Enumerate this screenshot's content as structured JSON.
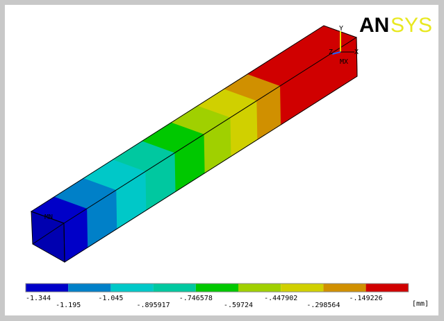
{
  "logo": {
    "part1": "AN",
    "part2": "SYS"
  },
  "triad": {
    "y": "Y",
    "z": "Z",
    "x": "X"
  },
  "markers": {
    "max": "MX",
    "min": "MN"
  },
  "legend": {
    "labels": [
      "-1.344",
      "-1.195",
      "-1.045",
      "-.895917",
      "-.746578",
      "-.59724",
      "-.447902",
      "-.298564",
      "-.149226"
    ],
    "unit": "[mm]"
  }
}
